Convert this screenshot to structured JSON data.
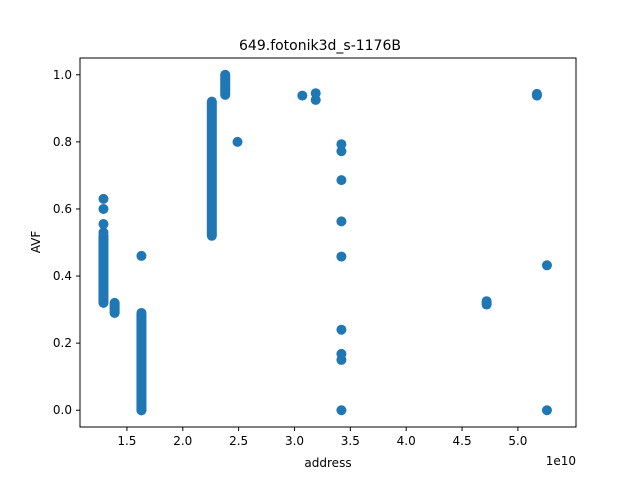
{
  "chart_data": {
    "type": "scatter",
    "title": "649.fotonik3d_s-1176B",
    "xlabel": "address",
    "ylabel": "AVF",
    "x_offset_label": "1e10",
    "xlim": [
      1.08,
      5.52
    ],
    "ylim": [
      -0.05,
      1.05
    ],
    "x_ticks": [
      1.5,
      2.0,
      2.5,
      3.0,
      3.5,
      4.0,
      4.5,
      5.0
    ],
    "x_tick_labels": [
      "1.5",
      "2.0",
      "2.5",
      "3.0",
      "3.5",
      "4.0",
      "4.5",
      "5.0"
    ],
    "y_ticks": [
      0.0,
      0.2,
      0.4,
      0.6,
      0.8,
      1.0
    ],
    "y_tick_labels": [
      "0.0",
      "0.2",
      "0.4",
      "0.6",
      "0.8",
      "1.0"
    ],
    "grid": false,
    "marker_color": "#1f77b4",
    "clusters": [
      {
        "x": 1.29,
        "y_from": 0.32,
        "y_to": 0.52
      },
      {
        "x": 1.39,
        "y_from": 0.29,
        "y_to": 0.32
      },
      {
        "x": 1.63,
        "y_from": 0.0,
        "y_to": 0.29
      },
      {
        "x": 2.26,
        "y_from": 0.52,
        "y_to": 0.92
      },
      {
        "x": 2.38,
        "y_from": 0.94,
        "y_to": 1.0
      },
      {
        "x": 4.72,
        "y_from": 0.315,
        "y_to": 0.325
      }
    ],
    "points": [
      {
        "x": 1.29,
        "y": 0.63
      },
      {
        "x": 1.29,
        "y": 0.6
      },
      {
        "x": 1.29,
        "y": 0.555
      },
      {
        "x": 1.29,
        "y": 0.53
      },
      {
        "x": 1.63,
        "y": 0.46
      },
      {
        "x": 1.63,
        "y": 0.0
      },
      {
        "x": 2.49,
        "y": 0.8
      },
      {
        "x": 3.07,
        "y": 0.938
      },
      {
        "x": 3.19,
        "y": 0.945
      },
      {
        "x": 3.19,
        "y": 0.925
      },
      {
        "x": 3.42,
        "y": 0.793
      },
      {
        "x": 3.42,
        "y": 0.772
      },
      {
        "x": 3.42,
        "y": 0.686
      },
      {
        "x": 3.42,
        "y": 0.563
      },
      {
        "x": 3.42,
        "y": 0.458
      },
      {
        "x": 3.42,
        "y": 0.24
      },
      {
        "x": 3.42,
        "y": 0.168
      },
      {
        "x": 3.42,
        "y": 0.15
      },
      {
        "x": 3.42,
        "y": 0.0
      },
      {
        "x": 5.17,
        "y": 0.943
      },
      {
        "x": 5.17,
        "y": 0.938
      },
      {
        "x": 5.26,
        "y": 0.432
      },
      {
        "x": 5.26,
        "y": 0.0
      }
    ]
  }
}
